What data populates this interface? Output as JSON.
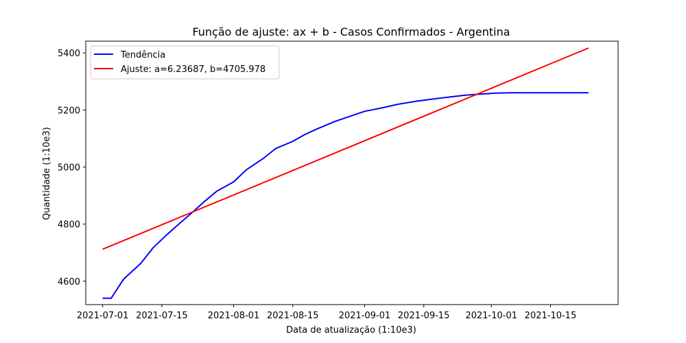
{
  "chart_data": {
    "type": "line",
    "title": "Função de ajuste: ax + b - Casos Confirmados - Argentina",
    "xlabel": "Data de atualização (1:10e3)",
    "ylabel": "Quantidade (1:10e3)",
    "x_ticks": [
      "2021-07-01",
      "2021-07-15",
      "2021-08-01",
      "2021-08-15",
      "2021-09-01",
      "2021-09-15",
      "2021-10-01",
      "2021-10-15"
    ],
    "y_ticks": [
      4600,
      4800,
      5000,
      5200,
      5400
    ],
    "xlim": [
      "2021-06-27",
      "2021-10-31"
    ],
    "ylim": [
      4518,
      5441
    ],
    "grid": false,
    "legend_position": "top-left",
    "series": [
      {
        "name": "Tendência",
        "color": "#0000ff",
        "x": [
          "2021-07-01",
          "2021-07-03",
          "2021-07-06",
          "2021-07-10",
          "2021-07-13",
          "2021-07-16",
          "2021-07-19",
          "2021-07-22",
          "2021-07-25",
          "2021-07-28",
          "2021-08-01",
          "2021-08-04",
          "2021-08-08",
          "2021-08-11",
          "2021-08-15",
          "2021-08-18",
          "2021-08-21",
          "2021-08-25",
          "2021-08-29",
          "2021-09-01",
          "2021-09-05",
          "2021-09-09",
          "2021-09-13",
          "2021-09-17",
          "2021-09-21",
          "2021-09-25",
          "2021-09-29",
          "2021-10-02",
          "2021-10-06",
          "2021-10-12",
          "2021-10-18",
          "2021-10-24"
        ],
        "y": [
          4540,
          4540,
          4608,
          4662,
          4718,
          4760,
          4800,
          4838,
          4878,
          4915,
          4948,
          4990,
          5030,
          5065,
          5090,
          5115,
          5135,
          5160,
          5180,
          5195,
          5207,
          5220,
          5230,
          5238,
          5245,
          5252,
          5256,
          5259,
          5260,
          5260,
          5260,
          5260
        ]
      },
      {
        "name": "Ajuste: a=6.23687, b=4705.978",
        "color": "#ff0000",
        "x": [
          "2021-07-01",
          "2021-10-24"
        ],
        "y": [
          4712,
          5417
        ]
      }
    ]
  }
}
